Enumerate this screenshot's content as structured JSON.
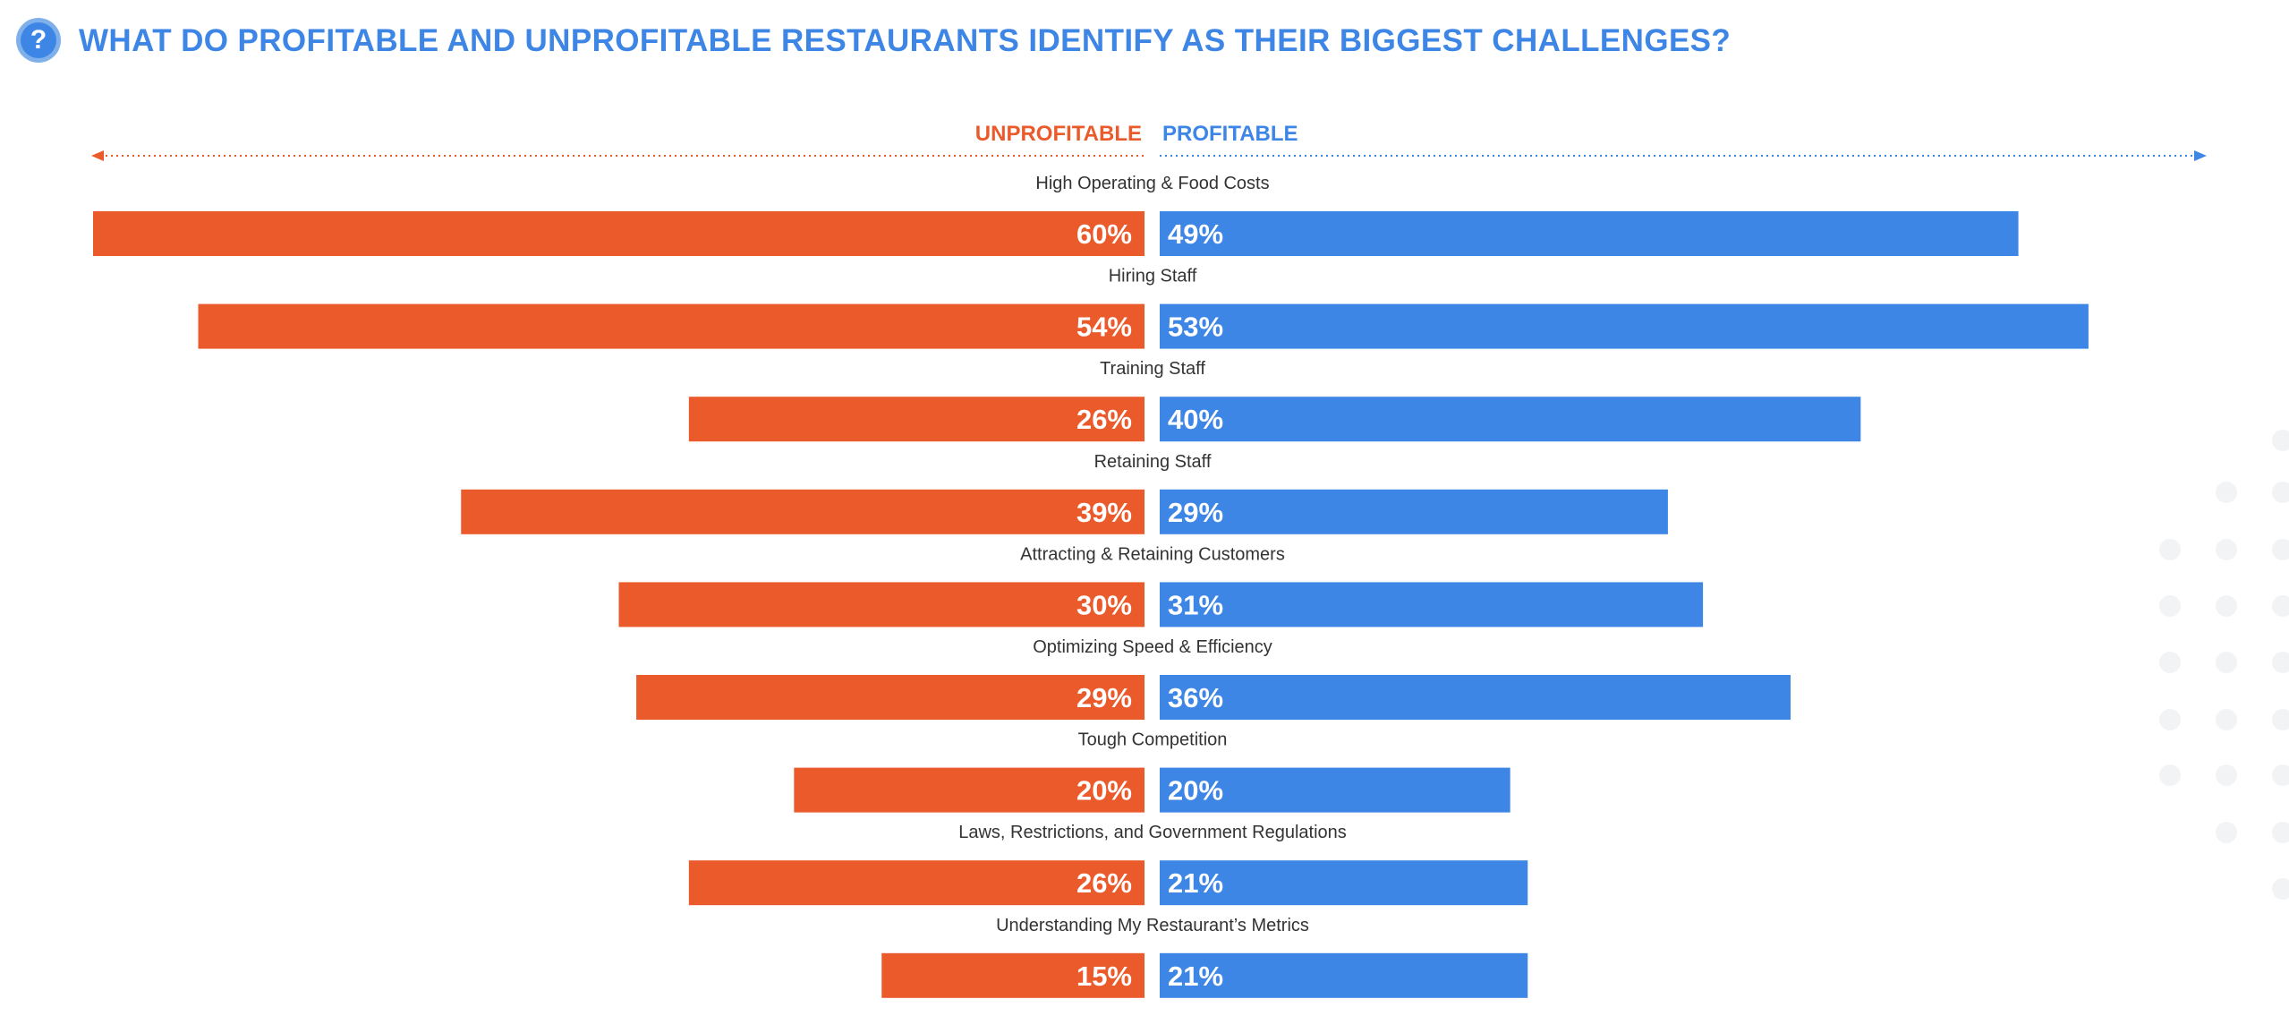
{
  "header": {
    "icon": "question-icon",
    "icon_glyph": "?",
    "title": "WHAT DO PROFITABLE AND UNPROFITABLE RESTAURANTS IDENTIFY AS THEIR BIGGEST CHALLENGES?"
  },
  "colors": {
    "unprofitable": "#eb5a2b",
    "profitable": "#3e86e6",
    "label_text": "#333333",
    "title": "#3e86e6"
  },
  "chart_data": {
    "type": "bar",
    "orientation": "horizontal-diverging",
    "title": "WHAT DO PROFITABLE AND UNPROFITABLE RESTAURANTS IDENTIFY AS THEIR BIGGEST CHALLENGES?",
    "categories": [
      "High Operating & Food Costs",
      "Hiring Staff",
      "Training Staff",
      "Retaining Staff",
      "Attracting & Retaining Customers",
      "Optimizing Speed & Efficiency",
      "Tough Competition",
      "Laws, Restrictions, and Government Regulations",
      "Understanding My Restaurant’s Metrics"
    ],
    "series": [
      {
        "name": "UNPROFITABLE",
        "direction": "left",
        "color": "#eb5a2b",
        "values": [
          60,
          54,
          26,
          39,
          30,
          29,
          20,
          26,
          15
        ],
        "labels": [
          "60%",
          "54%",
          "26%",
          "39%",
          "30%",
          "29%",
          "20%",
          "26%",
          "15%"
        ]
      },
      {
        "name": "PROFITABLE",
        "direction": "right",
        "color": "#3e86e6",
        "values": [
          49,
          53,
          40,
          29,
          31,
          36,
          20,
          21,
          21
        ],
        "labels": [
          "49%",
          "53%",
          "40%",
          "29%",
          "31%",
          "36%",
          "20%",
          "21%",
          "21%"
        ]
      }
    ],
    "unit": "%",
    "xlim": [
      0,
      60
    ],
    "grid": false,
    "legend": "top-center"
  }
}
